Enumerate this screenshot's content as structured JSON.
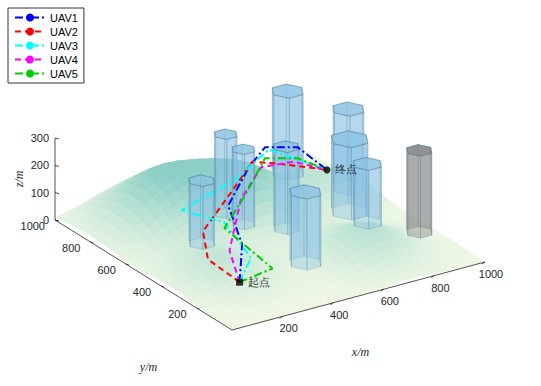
{
  "chart_data": {
    "type": "line3d",
    "xlabel": "x/m",
    "ylabel": "y/m",
    "zlabel": "z/m",
    "xlim": [
      0,
      1000
    ],
    "ylim": [
      0,
      1000
    ],
    "zlim": [
      0,
      300
    ],
    "xticks": [
      200,
      400,
      600,
      800,
      1000
    ],
    "yticks": [
      200,
      400,
      600,
      800,
      1000
    ],
    "zticks": [
      0,
      100,
      200,
      300
    ],
    "grid": false,
    "legend": "upper left",
    "series": [
      {
        "name": "UAV1",
        "color": "#0000ff",
        "line_style": "dashdot",
        "x": [
          100,
          250,
          300,
          450,
          550,
          750,
          900
        ],
        "y": [
          100,
          300,
          450,
          550,
          600,
          700,
          750
        ],
        "z": [
          110,
          130,
          200,
          260,
          290,
          200,
          60
        ]
      },
      {
        "name": "UAV2",
        "color": "#ff0000",
        "line_style": "dashed",
        "x": [
          100,
          150,
          200,
          350,
          500,
          700,
          900
        ],
        "y": [
          100,
          350,
          450,
          500,
          600,
          700,
          750
        ],
        "z": [
          110,
          80,
          130,
          220,
          250,
          150,
          60
        ]
      },
      {
        "name": "UAV3",
        "color": "#00ffff",
        "line_style": "dashdot",
        "x": [
          100,
          250,
          250,
          150,
          400,
          600,
          900
        ],
        "y": [
          100,
          250,
          400,
          500,
          550,
          650,
          750
        ],
        "z": [
          110,
          100,
          170,
          200,
          230,
          250,
          60
        ]
      },
      {
        "name": "UAV4",
        "color": "#ff00ff",
        "line_style": "dashed",
        "x": [
          100,
          200,
          350,
          500,
          700,
          900
        ],
        "y": [
          100,
          300,
          450,
          550,
          650,
          750
        ],
        "z": [
          110,
          120,
          210,
          250,
          180,
          60
        ]
      },
      {
        "name": "UAV5",
        "color": "#00cc00",
        "line_style": "dashdot",
        "x": [
          100,
          300,
          250,
          400,
          550,
          750,
          900
        ],
        "y": [
          100,
          200,
          400,
          500,
          600,
          700,
          750
        ],
        "z": [
          110,
          70,
          150,
          190,
          250,
          160,
          60
        ]
      }
    ],
    "annotations": [
      {
        "text": "起点",
        "x": 100,
        "y": 100,
        "z": 110,
        "marker": "square"
      },
      {
        "text": "终点",
        "x": 900,
        "y": 750,
        "z": 60,
        "marker": "circle"
      }
    ],
    "obstacles": [
      {
        "x": 300,
        "y": 600,
        "radius": 45,
        "height": 230,
        "color": "#8cc3e3"
      },
      {
        "x": 500,
        "y": 750,
        "radius": 40,
        "height": 290,
        "color": "#8cc3e3"
      },
      {
        "x": 500,
        "y": 650,
        "radius": 40,
        "height": 275,
        "color": "#8cc3e3"
      },
      {
        "x": 850,
        "y": 900,
        "radius": 55,
        "height": 300,
        "color": "#8cc3e3"
      },
      {
        "x": 600,
        "y": 550,
        "radius": 45,
        "height": 300,
        "color": "#8cc3e3"
      },
      {
        "x": 950,
        "y": 700,
        "radius": 55,
        "height": 290,
        "color": "#8cc3e3"
      },
      {
        "x": 850,
        "y": 550,
        "radius": 65,
        "height": 265,
        "color": "#8cc3e3"
      },
      {
        "x": 850,
        "y": 450,
        "radius": 50,
        "height": 215,
        "color": "#8cc3e3"
      },
      {
        "x": 950,
        "y": 300,
        "radius": 45,
        "height": 300,
        "color": "#7f7f7f"
      },
      {
        "x": 500,
        "y": 300,
        "radius": 55,
        "height": 260,
        "color": "#8cc3e3"
      }
    ],
    "terrain": {
      "peaks": [
        {
          "x": 300,
          "y": 800,
          "height": 180,
          "spread": 150
        },
        {
          "x": 550,
          "y": 700,
          "height": 150,
          "spread": 130
        },
        {
          "x": 700,
          "y": 250,
          "height": 100,
          "spread": 120
        },
        {
          "x": 200,
          "y": 350,
          "height": 80,
          "spread": 120
        },
        {
          "x": 850,
          "y": 700,
          "height": 80,
          "spread": 100
        }
      ]
    }
  }
}
